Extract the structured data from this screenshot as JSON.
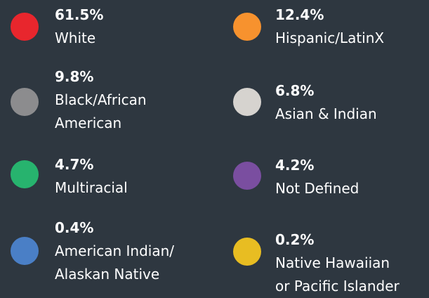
{
  "items": [
    {
      "value_label": "61.5%",
      "label_lines": [
        "White"
      ],
      "color": "#e8262d"
    },
    {
      "value_label": "9.8%",
      "label_lines": [
        "Black/African",
        "American"
      ],
      "color": "#8c8c8e"
    },
    {
      "value_label": "4.7%",
      "label_lines": [
        "Multiracial"
      ],
      "color": "#27b36e"
    },
    {
      "value_label": "0.4%",
      "label_lines": [
        "American Indian/",
        "Alaskan Native"
      ],
      "color": "#4a7fc6"
    },
    {
      "value_label": "12.4%",
      "label_lines": [
        "Hispanic/LatinX"
      ],
      "color": "#f7922e"
    },
    {
      "value_label": "6.8%",
      "label_lines": [
        "Asian & Indian"
      ],
      "color": "#d6d3cf"
    },
    {
      "value_label": "4.2%",
      "label_lines": [
        "Not Defined"
      ],
      "color": "#7a4ea0"
    },
    {
      "value_label": "0.2%",
      "label_lines": [
        "Native Hawaiian",
        "or Pacific Islander"
      ],
      "color": "#e8bd22"
    }
  ]
}
